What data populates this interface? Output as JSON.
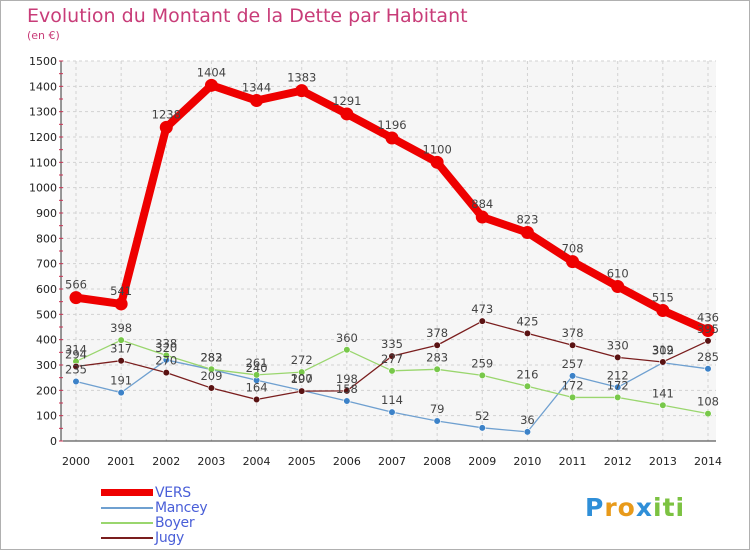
{
  "chart_data": {
    "type": "line",
    "title": "Evolution du Montant de la Dette par Habitant",
    "unit_label": "(en €)",
    "x": [
      "2000",
      "2001",
      "2002",
      "2003",
      "2004",
      "2005",
      "2006",
      "2007",
      "2008",
      "2009",
      "2010",
      "2011",
      "2012",
      "2013",
      "2014"
    ],
    "ylim": [
      0,
      1500
    ],
    "yticks": [
      0,
      100,
      200,
      300,
      400,
      500,
      600,
      700,
      800,
      900,
      1000,
      1100,
      1200,
      1300,
      1400,
      1500
    ],
    "grid": true,
    "legend_position": "bottom-left",
    "series": [
      {
        "name": "VERS",
        "color": "#ee0000",
        "line_color": "#ee0000",
        "marker_color": "#ee0000",
        "values": [
          566,
          541,
          1238,
          1404,
          1344,
          1383,
          1291,
          1196,
          1100,
          884,
          823,
          708,
          610,
          515,
          436
        ]
      },
      {
        "name": "Mancey",
        "color": "#6fa0d0",
        "line_color": "#6fa0d0",
        "marker_color": "#3c82c8",
        "values": [
          235,
          191,
          320,
          282,
          240,
          200,
          158,
          114,
          79,
          52,
          36,
          257,
          212,
          309,
          285
        ]
      },
      {
        "name": "Boyer",
        "color": "#9ad66e",
        "line_color": "#9ad66e",
        "marker_color": "#78c84a",
        "values": [
          314,
          398,
          338,
          283,
          261,
          272,
          360,
          277,
          283,
          259,
          216,
          172,
          172,
          141,
          108
        ]
      },
      {
        "name": "Jugy",
        "color": "#7a1e1e",
        "line_color": "#7a1e1e",
        "marker_color": "#5a1212",
        "values": [
          294,
          317,
          270,
          209,
          164,
          197,
          198,
          335,
          378,
          473,
          425,
          378,
          330,
          312,
          395
        ]
      }
    ]
  },
  "brand": {
    "letters": [
      "P",
      "r",
      "o",
      "x",
      "i",
      "t",
      "i"
    ],
    "colors": [
      "#2f8fd8",
      "#e89a1a",
      "#e89a1a",
      "#2f8fd8",
      "#7cc242",
      "#7cc242",
      "#7cc242"
    ]
  }
}
